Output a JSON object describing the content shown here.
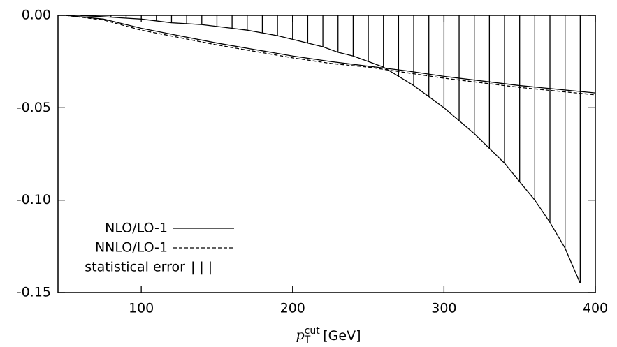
{
  "chart_data": {
    "type": "line",
    "xlabel": {
      "symbol": "p",
      "subscript": "T",
      "superscript": "cut",
      "unit": "[GeV]"
    },
    "x": [
      50,
      75,
      100,
      125,
      150,
      175,
      200,
      225,
      250,
      275,
      300,
      325,
      350,
      375,
      400
    ],
    "series": [
      {
        "name": "NLO/LO-1",
        "color": "#000000",
        "dash": false,
        "values": [
          0,
          -0.002,
          -0.007,
          -0.011,
          -0.015,
          -0.0185,
          -0.022,
          -0.025,
          -0.0275,
          -0.03,
          -0.033,
          -0.0355,
          -0.038,
          -0.04,
          -0.042
        ]
      },
      {
        "name": "NNLO/LO-1",
        "color": "#000000",
        "dash": true,
        "values": [
          0,
          -0.0025,
          -0.008,
          -0.012,
          -0.016,
          -0.0195,
          -0.023,
          -0.026,
          -0.028,
          -0.031,
          -0.034,
          -0.0365,
          -0.039,
          -0.041,
          -0.043
        ]
      }
    ],
    "error_band": {
      "name": "statistical error",
      "sample": "|||",
      "x": [
        60,
        70,
        80,
        90,
        100,
        110,
        120,
        130,
        140,
        150,
        160,
        170,
        180,
        190,
        200,
        210,
        220,
        230,
        240,
        250,
        260,
        270,
        280,
        290,
        300,
        310,
        320,
        330,
        340,
        350,
        360,
        370,
        380,
        390
      ],
      "values": [
        -0.0002,
        -0.0005,
        -0.001,
        -0.0015,
        -0.002,
        -0.003,
        -0.004,
        -0.0045,
        -0.005,
        -0.006,
        -0.007,
        -0.008,
        -0.0095,
        -0.011,
        -0.013,
        -0.015,
        -0.017,
        -0.02,
        -0.022,
        -0.025,
        -0.028,
        -0.033,
        -0.038,
        -0.044,
        -0.05,
        -0.057,
        -0.064,
        -0.072,
        -0.08,
        -0.09,
        -0.1,
        -0.112,
        -0.126,
        -0.145
      ]
    },
    "xlim": [
      45,
      400
    ],
    "ylim": [
      -0.15,
      0
    ],
    "xticks": [
      100,
      200,
      300,
      400
    ],
    "yticks": [
      {
        "value": 0,
        "label": "0.00"
      },
      {
        "value": -0.05,
        "label": "-0.05"
      },
      {
        "value": -0.1,
        "label": "-0.10"
      },
      {
        "value": -0.15,
        "label": "-0.15"
      }
    ],
    "legend": "lower left"
  }
}
